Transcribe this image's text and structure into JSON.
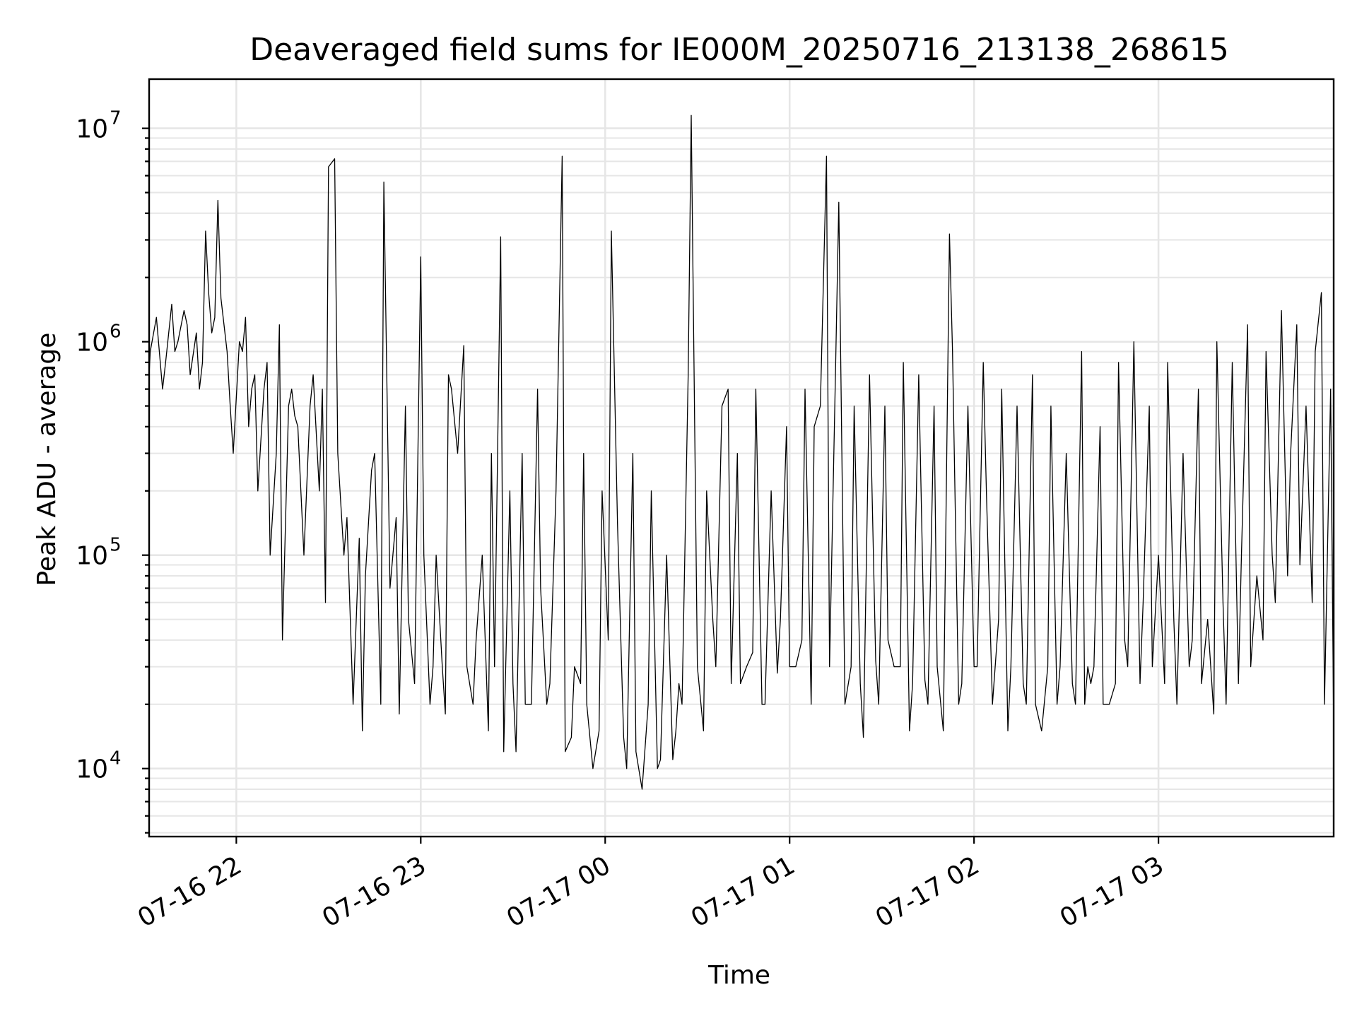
{
  "chart_data": {
    "type": "line",
    "title": "Deaveraged field sums for IE000M_20250716_213138_268615",
    "xlabel": "Time",
    "ylabel": "Peak ADU - average",
    "yscale": "log",
    "ylim": [
      4800,
      17000000
    ],
    "xlim": [
      "2025-07-16 21:31:38",
      "2025-07-17 03:57:00"
    ],
    "y_ticks": [
      {
        "value": 10000,
        "base": "10",
        "exp": "4"
      },
      {
        "value": 100000,
        "base": "10",
        "exp": "5"
      },
      {
        "value": 1000000,
        "base": "10",
        "exp": "6"
      },
      {
        "value": 10000000,
        "base": "10",
        "exp": "7"
      }
    ],
    "x_ticks": [
      {
        "time": "2025-07-16 22:00",
        "label": "07-16 22"
      },
      {
        "time": "2025-07-16 23:00",
        "label": "07-16 23"
      },
      {
        "time": "2025-07-17 00:00",
        "label": "07-17 00"
      },
      {
        "time": "2025-07-17 01:00",
        "label": "07-17 01"
      },
      {
        "time": "2025-07-17 02:00",
        "label": "07-17 02"
      },
      {
        "time": "2025-07-17 03:00",
        "label": "07-17 03"
      }
    ],
    "grid": true,
    "line_color": "#000000",
    "series": [
      {
        "x": [
          "2025-07-16 21:31:38",
          "2025-07-16 21:36",
          "2025-07-16 21:40",
          "2025-07-16 21:44",
          "2025-07-16 21:48",
          "2025-07-16 21:50",
          "2025-07-16 21:52",
          "2025-07-16 21:54",
          "2025-07-16 21:58",
          "2025-07-16 22:02",
          "2025-07-16 22:03",
          "2025-07-16 22:05",
          "2025-07-16 22:06",
          "2025-07-16 22:10",
          "2025-07-16 22:14",
          "2025-07-16 22:17",
          "2025-07-16 22:18",
          "2025-07-16 22:19",
          "2025-07-16 22:24",
          "2025-07-16 22:27",
          "2025-07-16 22:28",
          "2025-07-16 22:30",
          "2025-07-16 22:32",
          "2025-07-16 22:36",
          "2025-07-16 22:40",
          "2025-07-16 22:42",
          "2025-07-16 22:44",
          "2025-07-16 22:48",
          "2025-07-16 22:52",
          "2025-07-16 22:56",
          "2025-07-16 23:00",
          "2025-07-16 23:04",
          "2025-07-16 23:08",
          "2025-07-16 23:10",
          "2025-07-16 23:14",
          "2025-07-16 23:18",
          "2025-07-16 23:22",
          "2025-07-16 23:24",
          "2025-07-16 23:26",
          "2025-07-16 23:30",
          "2025-07-16 23:34",
          "2025-07-16 23:38",
          "2025-07-16 23:42",
          "2025-07-16 23:46",
          "2025-07-16 23:50",
          "2025-07-16 23:52",
          "2025-07-16 23:54",
          "2025-07-16 23:58",
          "2025-07-17 00:02",
          "2025-07-17 00:06",
          "2025-07-17 00:10",
          "2025-07-17 00:14",
          "2025-07-17 00:18",
          "2025-07-17 00:22",
          "2025-07-17 00:23",
          "2025-07-17 00:24",
          "2025-07-17 00:28",
          "2025-07-17 00:32",
          "2025-07-17 00:36",
          "2025-07-17 00:40",
          "2025-07-17 00:44",
          "2025-07-17 00:48",
          "2025-07-17 00:52",
          "2025-07-17 00:56",
          "2025-07-17 01:00",
          "2025-07-17 01:04",
          "2025-07-17 01:08",
          "2025-07-17 01:12",
          "2025-07-17 01:16",
          "2025-07-17 01:20",
          "2025-07-17 01:24",
          "2025-07-17 01:28",
          "2025-07-17 01:32",
          "2025-07-17 01:36",
          "2025-07-17 01:40",
          "2025-07-17 01:44",
          "2025-07-17 01:48",
          "2025-07-17 01:52",
          "2025-07-17 01:56",
          "2025-07-17 02:00",
          "2025-07-17 02:04",
          "2025-07-17 02:08",
          "2025-07-17 02:12",
          "2025-07-17 02:16",
          "2025-07-17 02:20",
          "2025-07-17 02:24",
          "2025-07-17 02:28",
          "2025-07-17 02:32",
          "2025-07-17 02:36",
          "2025-07-17 02:37",
          "2025-07-17 02:38",
          "2025-07-17 02:42",
          "2025-07-17 02:46",
          "2025-07-17 02:50",
          "2025-07-17 02:54",
          "2025-07-17 02:58",
          "2025-07-17 03:02",
          "2025-07-17 03:06",
          "2025-07-17 03:10",
          "2025-07-17 03:14",
          "2025-07-17 03:18",
          "2025-07-17 03:22",
          "2025-07-17 03:26",
          "2025-07-17 03:30",
          "2025-07-17 03:34",
          "2025-07-17 03:38",
          "2025-07-17 03:42",
          "2025-07-17 03:46",
          "2025-07-17 03:50",
          "2025-07-17 03:54",
          "2025-07-17 03:57"
        ],
        "y": [
          700000,
          600000,
          900000,
          1200000,
          600000,
          3300000,
          1100000,
          4600000,
          500000,
          900000,
          1300000,
          600000,
          700000,
          800000,
          1200000,
          500000,
          600000,
          450000,
          500000,
          200000,
          600000,
          6600000,
          7200000,
          150000,
          120000,
          80000,
          250000,
          5600000,
          150000,
          50000,
          2500000,
          30000,
          18000,
          600000,
          960000,
          40000,
          15000,
          30000,
          3100000,
          25000,
          20000,
          600000,
          25000,
          7400000,
          30000,
          25000,
          20000,
          15000,
          3300000,
          14000,
          12000,
          20000,
          11000,
          11000,
          15000,
          25000,
          11500000,
          15000,
          30000,
          600000,
          25000,
          35000,
          20000,
          28000,
          30000,
          40000,
          400000,
          7400000,
          4500000,
          30000,
          14000,
          32000,
          40000,
          30000,
          25000,
          26000,
          30000,
          3200000,
          25000,
          30000,
          200000,
          50000,
          30000,
          25000,
          20000,
          30000,
          30000,
          25000,
          20000,
          30000,
          25000,
          20000,
          25000,
          30000,
          25000,
          30000,
          25000,
          20000,
          30000,
          25000,
          18000,
          20000,
          25000,
          30000,
          40000,
          60000,
          80000,
          90000,
          60000,
          20000,
          15000
        ]
      },
      {
        "x": [
          "2025-07-16 21:32",
          "2025-07-16 21:34",
          "2025-07-16 21:37",
          "2025-07-16 21:39",
          "2025-07-16 21:41",
          "2025-07-16 21:43",
          "2025-07-16 21:45",
          "2025-07-16 21:47",
          "2025-07-16 21:49",
          "2025-07-16 21:51",
          "2025-07-16 21:53",
          "2025-07-16 21:55",
          "2025-07-16 21:57",
          "2025-07-16 21:59",
          "2025-07-16 22:01",
          "2025-07-16 22:04",
          "2025-07-16 22:07",
          "2025-07-16 22:09",
          "2025-07-16 22:11",
          "2025-07-16 22:13",
          "2025-07-16 22:15",
          "2025-07-16 22:20",
          "2025-07-16 22:22",
          "2025-07-16 22:25",
          "2025-07-16 22:29",
          "2025-07-16 22:33",
          "2025-07-16 22:35",
          "2025-07-16 22:38",
          "2025-07-16 22:41",
          "2025-07-16 22:45",
          "2025-07-16 22:47",
          "2025-07-16 22:50",
          "2025-07-16 22:53",
          "2025-07-16 22:55",
          "2025-07-16 22:58",
          "2025-07-16 23:01",
          "2025-07-16 23:03",
          "2025-07-16 23:05",
          "2025-07-16 23:07",
          "2025-07-16 23:09",
          "2025-07-16 23:12",
          "2025-07-16 23:15",
          "2025-07-16 23:17",
          "2025-07-16 23:20",
          "2025-07-16 23:23",
          "2025-07-16 23:27",
          "2025-07-16 23:29",
          "2025-07-16 23:31",
          "2025-07-16 23:33",
          "2025-07-16 23:36",
          "2025-07-16 23:39",
          "2025-07-16 23:41",
          "2025-07-16 23:44",
          "2025-07-16 23:47",
          "2025-07-16 23:49",
          "2025-07-16 23:53",
          "2025-07-16 23:56",
          "2025-07-16 23:59",
          "2025-07-17 00:01",
          "2025-07-17 00:04",
          "2025-07-17 00:07",
          "2025-07-17 00:09",
          "2025-07-17 00:12",
          "2025-07-17 00:15",
          "2025-07-17 00:17",
          "2025-07-17 00:20",
          "2025-07-17 00:25",
          "2025-07-17 00:27",
          "2025-07-17 00:30",
          "2025-07-17 00:33",
          "2025-07-17 00:35",
          "2025-07-17 00:38",
          "2025-07-17 00:41",
          "2025-07-17 00:43",
          "2025-07-17 00:46",
          "2025-07-17 00:49",
          "2025-07-17 00:51",
          "2025-07-17 00:54",
          "2025-07-17 00:57",
          "2025-07-17 00:59",
          "2025-07-17 01:02",
          "2025-07-17 01:05",
          "2025-07-17 01:07",
          "2025-07-17 01:10",
          "2025-07-17 01:13",
          "2025-07-17 01:15",
          "2025-07-17 01:18",
          "2025-07-17 01:21",
          "2025-07-17 01:23",
          "2025-07-17 01:26",
          "2025-07-17 01:29",
          "2025-07-17 01:31",
          "2025-07-17 01:34",
          "2025-07-17 01:37",
          "2025-07-17 01:39",
          "2025-07-17 01:42",
          "2025-07-17 01:45",
          "2025-07-17 01:47",
          "2025-07-17 01:50",
          "2025-07-17 01:53",
          "2025-07-17 01:55",
          "2025-07-17 01:58",
          "2025-07-17 02:01",
          "2025-07-17 02:03",
          "2025-07-17 02:06",
          "2025-07-17 02:09",
          "2025-07-17 02:11",
          "2025-07-17 02:14",
          "2025-07-17 02:17",
          "2025-07-17 02:19",
          "2025-07-17 02:22",
          "2025-07-17 02:25",
          "2025-07-17 02:27",
          "2025-07-17 02:30",
          "2025-07-17 02:33",
          "2025-07-17 02:35",
          "2025-07-17 02:39",
          "2025-07-17 02:41",
          "2025-07-17 02:44",
          "2025-07-17 02:47",
          "2025-07-17 02:49",
          "2025-07-17 02:52",
          "2025-07-17 02:55",
          "2025-07-17 02:57",
          "2025-07-17 03:00",
          "2025-07-17 03:03",
          "2025-07-17 03:05",
          "2025-07-17 03:08",
          "2025-07-17 03:11",
          "2025-07-17 03:13",
          "2025-07-17 03:16",
          "2025-07-17 03:19",
          "2025-07-17 03:21",
          "2025-07-17 03:24",
          "2025-07-17 03:27",
          "2025-07-17 03:29",
          "2025-07-17 03:32",
          "2025-07-17 03:35",
          "2025-07-17 03:37",
          "2025-07-17 03:40",
          "2025-07-17 03:43",
          "2025-07-17 03:45",
          "2025-07-17 03:48",
          "2025-07-17 03:51",
          "2025-07-17 03:53",
          "2025-07-17 03:56"
        ],
        "y": [
          900000,
          1300000,
          800000,
          1500000,
          1000000,
          1400000,
          700000,
          1100000,
          800000,
          1700000,
          1300000,
          1600000,
          900000,
          300000,
          1000000,
          400000,
          200000,
          600000,
          100000,
          300000,
          40000,
          400000,
          100000,
          700000,
          60000,
          300000,
          100000,
          20000,
          15000,
          300000,
          20000,
          70000,
          18000,
          500000,
          25000,
          100000,
          20000,
          100000,
          30000,
          700000,
          300000,
          30000,
          20000,
          100000,
          300000,
          12000,
          200000,
          12000,
          300000,
          20000,
          70000,
          20000,
          200000,
          12000,
          14000,
          300000,
          10000,
          200000,
          40000,
          140000,
          10000,
          300000,
          8000,
          200000,
          10000,
          100000,
          20000,
          700000,
          30000,
          200000,
          50000,
          500000,
          25000,
          300000,
          30000,
          600000,
          20000,
          200000,
          50000,
          400000,
          30000,
          600000,
          20000,
          500000,
          30000,
          800000,
          20000,
          500000,
          25000,
          700000,
          20000,
          500000,
          30000,
          800000,
          15000,
          700000,
          20000,
          500000,
          15000,
          900000,
          20000,
          500000,
          30000,
          800000,
          20000,
          600000,
          15000,
          500000,
          20000,
          700000,
          15000,
          500000,
          20000,
          300000,
          20000,
          900000,
          30000,
          400000,
          20000,
          800000,
          40000,
          1000000,
          60000,
          500000,
          100000,
          800000,
          50000,
          300000,
          40000,
          600000,
          50000,
          1000000,
          60000,
          800000,
          100000,
          1200000,
          80000,
          900000,
          100000,
          1400000,
          300000,
          1200000,
          500000,
          900000,
          1700000,
          600000
        ]
      }
    ]
  }
}
